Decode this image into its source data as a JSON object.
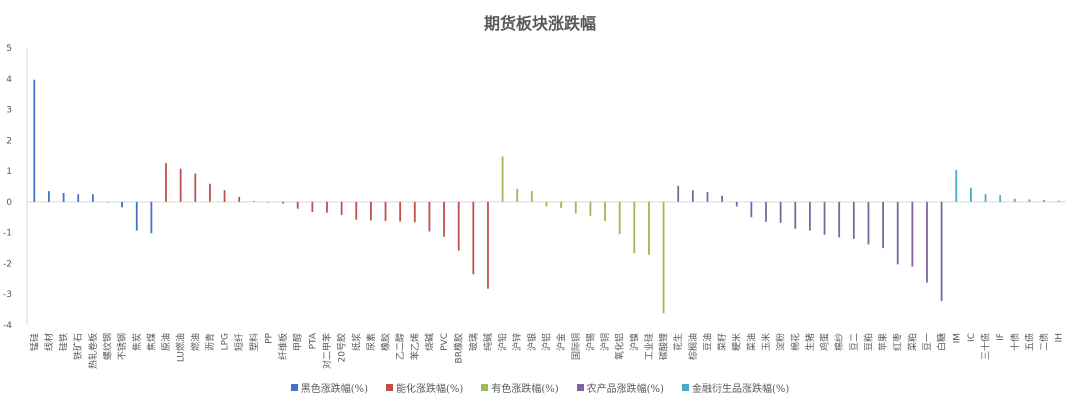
{
  "chart_data": {
    "type": "bar",
    "title": "期货板块涨跌幅",
    "xlabel": "",
    "ylabel": "",
    "ylim": [
      -4,
      5
    ],
    "yticks": [
      -4,
      -3,
      -2,
      -1,
      0,
      1,
      2,
      3,
      4,
      5
    ],
    "grid": false,
    "legend_position": "bottom",
    "series": [
      {
        "name": "黑色涨跌幅(%)",
        "color": "#4472C4",
        "categories": [
          "锰硅",
          "线材",
          "硅铁",
          "铁矿石",
          "热轧卷板",
          "螺纹钢",
          "不锈钢",
          "焦炭",
          "焦煤"
        ],
        "values": [
          3.97,
          0.35,
          0.29,
          0.25,
          0.25,
          0.0,
          -0.18,
          -0.93,
          -1.02
        ]
      },
      {
        "name": "能化涨跌幅(%)",
        "color": "#C0504D",
        "categories": [
          "原油",
          "LU燃油",
          "燃油",
          "沥青",
          "LPG",
          "短纤",
          "塑料",
          "PP",
          "纤维板",
          "甲醇",
          "PTA",
          "对二甲苯",
          "20号胶",
          "纸浆",
          "尿素",
          "橡胶",
          "乙二醇",
          "苯乙烯",
          "烧碱",
          "PVC",
          "BR橡胶",
          "玻璃",
          "纯碱"
        ],
        "values": [
          1.26,
          1.08,
          0.92,
          0.59,
          0.38,
          0.16,
          0.02,
          -0.02,
          -0.05,
          -0.22,
          -0.33,
          -0.35,
          -0.43,
          -0.58,
          -0.6,
          -0.62,
          -0.64,
          -0.66,
          -0.96,
          -1.13,
          -1.58,
          -2.35,
          -2.82
        ]
      },
      {
        "name": "有色涨跌幅(%)",
        "color": "#9BBB59",
        "categories": [
          "沪铅",
          "沪锌",
          "沪银",
          "沪铝",
          "沪金",
          "国际铜",
          "沪锡",
          "沪铜",
          "氧化铝",
          "沪镍",
          "工业硅",
          "碳酸锂"
        ],
        "values": [
          1.48,
          0.43,
          0.35,
          -0.15,
          -0.2,
          -0.38,
          -0.45,
          -0.62,
          -1.05,
          -1.67,
          -1.72,
          -3.62
        ]
      },
      {
        "name": "农产品涨跌幅(%)",
        "color": "#8064A2",
        "categories": [
          "花生",
          "棕榈油",
          "豆油",
          "菜籽",
          "粳米",
          "菜油",
          "玉米",
          "淀粉",
          "棉花",
          "生猪",
          "鸡蛋",
          "棉纱",
          "豆二",
          "豆粕",
          "苹果",
          "红枣",
          "菜粕",
          "豆一",
          "白糖"
        ],
        "values": [
          0.52,
          0.38,
          0.32,
          0.2,
          -0.15,
          -0.5,
          -0.65,
          -0.68,
          -0.87,
          -0.93,
          -1.07,
          -1.15,
          -1.2,
          -1.38,
          -1.5,
          -2.03,
          -2.1,
          -2.62,
          -3.22
        ]
      },
      {
        "name": "金融衍生品涨跌幅(%)",
        "color": "#4BACC6",
        "categories": [
          "IM",
          "IC",
          "三十债",
          "IF",
          "十债",
          "五债",
          "二债",
          "IH"
        ],
        "values": [
          1.04,
          0.46,
          0.25,
          0.22,
          0.1,
          0.08,
          0.06,
          0.04
        ]
      }
    ]
  }
}
